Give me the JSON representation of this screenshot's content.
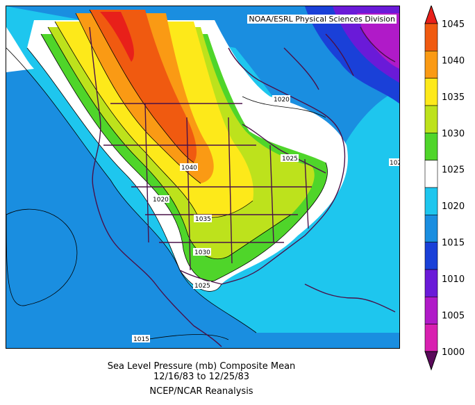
{
  "credit": "NOAA/ESRL Physical Sciences Division",
  "caption": {
    "line1": "Sea Level Pressure (mb) Composite Mean",
    "line2": "12/16/83   to 12/25/83",
    "line3": "NCEP/NCAR Reanalysis"
  },
  "contour_labels": [
    {
      "text": "1020",
      "name": "contour-label-1020-north"
    },
    {
      "text": "1025",
      "name": "contour-label-1025-east"
    },
    {
      "text": "102",
      "name": "contour-label-102-edge"
    },
    {
      "text": "1040",
      "name": "contour-label-1040"
    },
    {
      "text": "1020",
      "name": "contour-label-1020-west"
    },
    {
      "text": "1035",
      "name": "contour-label-1035"
    },
    {
      "text": "1030",
      "name": "contour-label-1030"
    },
    {
      "text": "1025",
      "name": "contour-label-1025-south"
    },
    {
      "text": "1015",
      "name": "contour-label-1015"
    }
  ],
  "colorbar": {
    "levels": [
      "1045",
      "1040",
      "1035",
      "1030",
      "1025",
      "1020",
      "1015",
      "1010",
      "1005",
      "1000"
    ],
    "colors": [
      "#e8201a",
      "#f05a10",
      "#fa9a14",
      "#fde91a",
      "#bde21c",
      "#4fd52a",
      "#ffffff",
      "#1ec6ee",
      "#1a8ee0",
      "#1a40d8",
      "#6a1ad8",
      "#b01ac8",
      "#d820b0",
      "#5a0a5a"
    ]
  }
}
